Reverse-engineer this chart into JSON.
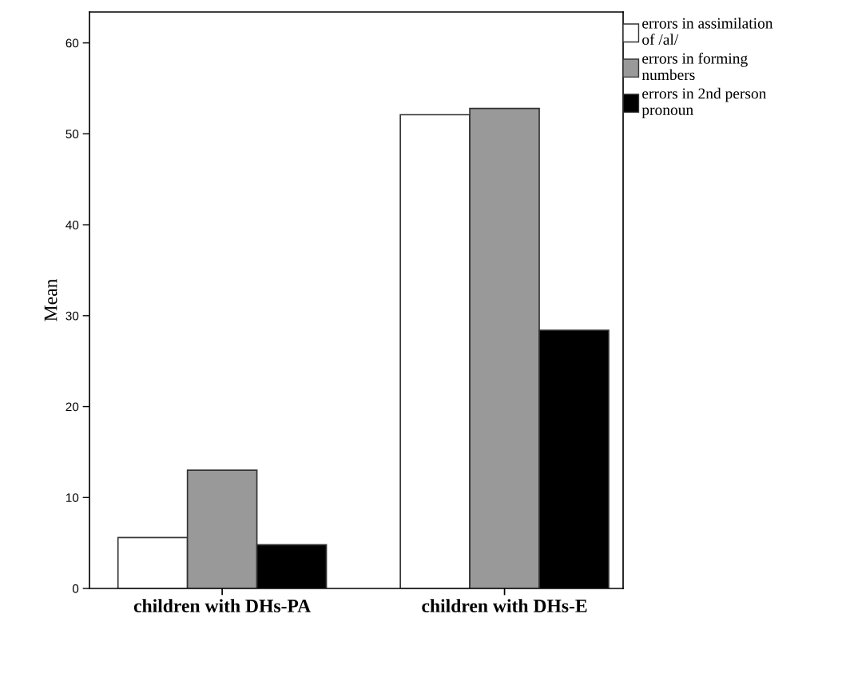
{
  "chart_data": {
    "type": "bar",
    "ylabel": "Mean",
    "categories": [
      "children with DHs-PA",
      "children with DHs-E"
    ],
    "series": [
      {
        "name": "errors in assimilation of /al/",
        "color": "#ffffff",
        "values": [
          5.6,
          52.1
        ]
      },
      {
        "name": "errors in forming numbers",
        "color": "#999999",
        "values": [
          13.0,
          52.8
        ]
      },
      {
        "name": "errors in 2nd person pronoun",
        "color": "#000000",
        "values": [
          4.8,
          28.4
        ]
      }
    ],
    "ylim": [
      0,
      63.4
    ],
    "yticks": [
      0,
      10,
      20,
      30,
      40,
      50,
      60
    ],
    "grid": false,
    "legend": "top right"
  }
}
